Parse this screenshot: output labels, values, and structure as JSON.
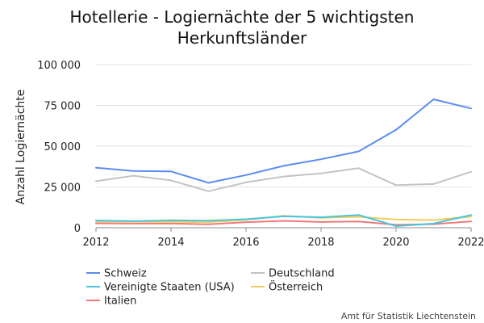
{
  "chart_data": {
    "type": "line",
    "title_lines": [
      "Hotellerie - Logiernächte der 5 wichtigsten",
      "Herkunftsländer"
    ],
    "ylabel": "Anzahl Logiernächte",
    "xlabel": "",
    "x": [
      2012,
      2013,
      2014,
      2015,
      2016,
      2017,
      2018,
      2019,
      2020,
      2021,
      2022
    ],
    "xticks": [
      "2012",
      "2014",
      "2016",
      "2018",
      "2020",
      "2022"
    ],
    "ylim": [
      0,
      100000
    ],
    "yticks": [
      "0",
      "25 000",
      "50 000",
      "75 000",
      "100 000"
    ],
    "grid": true,
    "legend_position": "bottom-left",
    "series": [
      {
        "name": "Schweiz",
        "color": "#5b8cf0",
        "values": [
          36800,
          34800,
          34500,
          27500,
          32300,
          37900,
          42000,
          46800,
          60000,
          78700,
          73100
        ]
      },
      {
        "name": "Deutschland",
        "color": "#c3c3c3",
        "values": [
          28500,
          31900,
          29000,
          22400,
          27800,
          31400,
          33300,
          36500,
          26100,
          26800,
          34300
        ]
      },
      {
        "name": "Vereinigte Staaten (USA)",
        "color": "#48c4de",
        "values": [
          4400,
          4000,
          4500,
          4300,
          5200,
          7000,
          6400,
          7800,
          1000,
          2500,
          7800
        ]
      },
      {
        "name": "Österreich",
        "color": "#f2cd5d",
        "values": [
          3800,
          3700,
          3600,
          3400,
          4800,
          7300,
          6100,
          6700,
          5000,
          4700,
          6800
        ]
      },
      {
        "name": "Italien",
        "color": "#f07a7a",
        "values": [
          2700,
          2500,
          2600,
          2100,
          3400,
          4200,
          3500,
          3800,
          1800,
          2200,
          3900
        ]
      }
    ]
  },
  "credit": "Amt für Statistik Liechtenstein"
}
